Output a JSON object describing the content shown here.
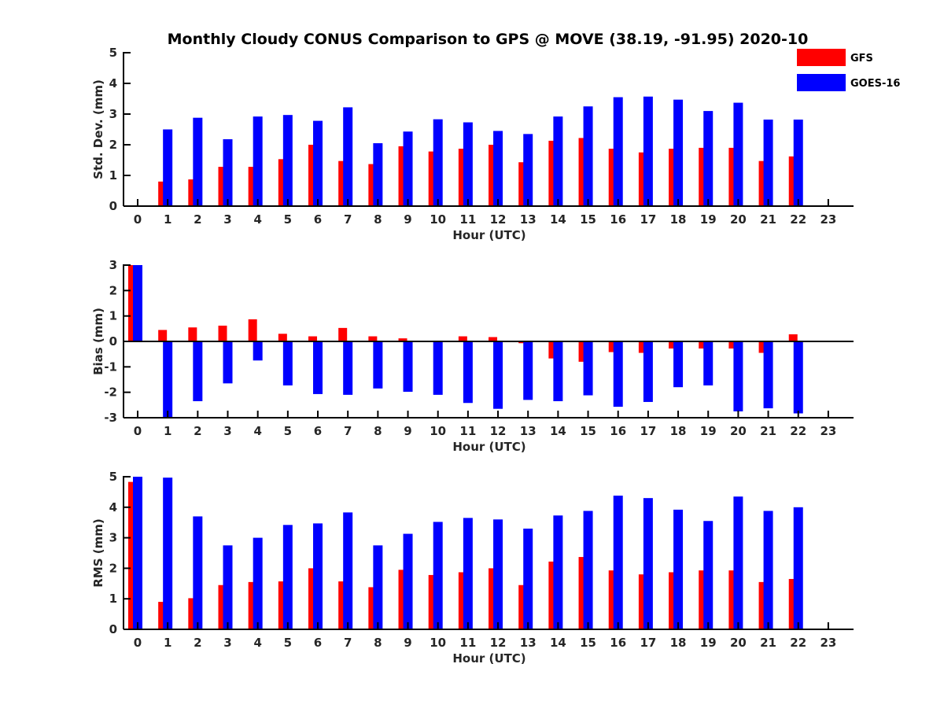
{
  "title": "Monthly Cloudy CONUS Comparison to GPS @ MOVE (38.19, -91.95) 2020-10",
  "legend": {
    "placement": "top-right",
    "entries": [
      {
        "name": "GFS",
        "color": "#ff0000"
      },
      {
        "name": "GOES-16",
        "color": "#0000ff"
      }
    ]
  },
  "chart_data": [
    {
      "type": "bar",
      "ylabel": "Std. Dev. (mm)",
      "xlabel": "Hour (UTC)",
      "categories": [
        "0",
        "1",
        "2",
        "3",
        "4",
        "5",
        "6",
        "7",
        "8",
        "9",
        "10",
        "11",
        "12",
        "13",
        "14",
        "15",
        "16",
        "17",
        "18",
        "19",
        "20",
        "21",
        "22",
        "23"
      ],
      "ylim": [
        0,
        5
      ],
      "yticks": [
        0,
        1,
        2,
        3,
        4,
        5
      ],
      "series": [
        {
          "name": "GFS",
          "color": "#ff0000",
          "values": [
            null,
            0.8,
            0.87,
            1.28,
            1.28,
            1.53,
            2.0,
            1.47,
            1.37,
            1.95,
            1.78,
            1.87,
            2.0,
            1.43,
            2.13,
            2.22,
            1.87,
            1.75,
            1.87,
            1.9,
            1.9,
            1.47,
            1.62,
            null
          ]
        },
        {
          "name": "GOES-16",
          "color": "#0000ff",
          "values": [
            null,
            2.5,
            2.88,
            2.18,
            2.92,
            2.97,
            2.78,
            3.22,
            2.05,
            2.43,
            2.83,
            2.73,
            2.45,
            2.35,
            2.92,
            3.25,
            3.55,
            3.57,
            3.47,
            3.1,
            3.37,
            2.82,
            2.82,
            null
          ]
        }
      ]
    },
    {
      "type": "bar",
      "ylabel": "Bias (mm)",
      "xlabel": "Hour (UTC)",
      "categories": [
        "0",
        "1",
        "2",
        "3",
        "4",
        "5",
        "6",
        "7",
        "8",
        "9",
        "10",
        "11",
        "12",
        "13",
        "14",
        "15",
        "16",
        "17",
        "18",
        "19",
        "20",
        "21",
        "22",
        "23"
      ],
      "ylim": [
        -3,
        3
      ],
      "yticks": [
        -3,
        -2,
        -1,
        0,
        1,
        2,
        3
      ],
      "series": [
        {
          "name": "GFS",
          "color": "#ff0000",
          "values": [
            3.0,
            0.45,
            0.55,
            0.62,
            0.87,
            0.3,
            0.2,
            0.53,
            0.2,
            0.12,
            0.0,
            0.2,
            0.17,
            -0.07,
            -0.67,
            -0.8,
            -0.42,
            -0.45,
            -0.28,
            -0.28,
            -0.28,
            -0.45,
            0.28,
            null
          ]
        },
        {
          "name": "GOES-16",
          "color": "#0000ff",
          "values": [
            3.0,
            -3.0,
            -2.35,
            -1.65,
            -0.75,
            -1.73,
            -2.07,
            -2.1,
            -1.85,
            -1.98,
            -2.1,
            -2.42,
            -2.65,
            -2.3,
            -2.35,
            -2.12,
            -2.57,
            -2.38,
            -1.8,
            -1.73,
            -2.75,
            -2.63,
            -2.83,
            null
          ]
        }
      ]
    },
    {
      "type": "bar",
      "ylabel": "RMS (mm)",
      "xlabel": "Hour (UTC)",
      "categories": [
        "0",
        "1",
        "2",
        "3",
        "4",
        "5",
        "6",
        "7",
        "8",
        "9",
        "10",
        "11",
        "12",
        "13",
        "14",
        "15",
        "16",
        "17",
        "18",
        "19",
        "20",
        "21",
        "22",
        "23"
      ],
      "ylim": [
        0,
        5
      ],
      "yticks": [
        0,
        1,
        2,
        3,
        4,
        5
      ],
      "series": [
        {
          "name": "GFS",
          "color": "#ff0000",
          "values": [
            4.83,
            0.9,
            1.02,
            1.45,
            1.55,
            1.57,
            2.0,
            1.57,
            1.38,
            1.95,
            1.78,
            1.87,
            2.0,
            1.45,
            2.22,
            2.37,
            1.93,
            1.8,
            1.87,
            1.93,
            1.93,
            1.55,
            1.65,
            null
          ]
        },
        {
          "name": "GOES-16",
          "color": "#0000ff",
          "values": [
            5.0,
            4.97,
            3.7,
            2.75,
            3.0,
            3.42,
            3.47,
            3.83,
            2.75,
            3.13,
            3.52,
            3.65,
            3.6,
            3.3,
            3.73,
            3.88,
            4.38,
            4.3,
            3.92,
            3.55,
            4.35,
            3.88,
            4.0,
            null
          ]
        }
      ]
    }
  ]
}
